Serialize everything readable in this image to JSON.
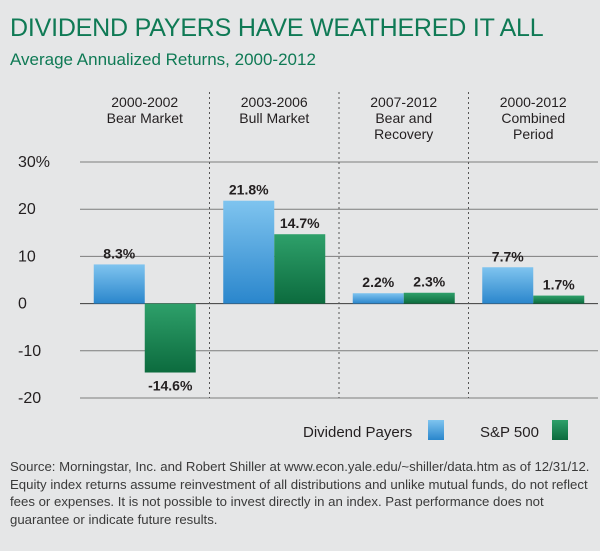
{
  "header": {
    "title": "DIVIDEND PAYERS HAVE WEATHERED IT ALL",
    "subtitle": "Average Annualized Returns, 2000-2012"
  },
  "colors": {
    "accent": "#0f7a55",
    "dividend_payers": "#2a86cc",
    "sp500": "#0c6b3e"
  },
  "chart_data": {
    "type": "bar",
    "categories": [
      [
        "2000-2002",
        "Bear Market"
      ],
      [
        "2003-2006",
        "Bull Market"
      ],
      [
        "2007-2012",
        "Bear and",
        "Recovery"
      ],
      [
        "2000-2012",
        "Combined",
        "Period"
      ]
    ],
    "series": [
      {
        "name": "Dividend Payers",
        "values": [
          8.3,
          21.8,
          2.2,
          7.7
        ],
        "labels": [
          "8.3%",
          "21.8%",
          "2.2%",
          "7.7%"
        ]
      },
      {
        "name": "S&P 500",
        "values": [
          -14.6,
          14.7,
          2.3,
          1.7
        ],
        "labels": [
          "-14.6%",
          "14.7%",
          "2.3%",
          "1.7%"
        ]
      }
    ],
    "yticks": [
      "30%",
      "20",
      "10",
      "0",
      "-10",
      "-20"
    ],
    "ytick_values": [
      30,
      20,
      10,
      0,
      -10,
      -20
    ],
    "ylim": [
      -20,
      30
    ],
    "grid": true,
    "legend_position": "bottom-right"
  },
  "footer": {
    "source": "Source: Morningstar, Inc. and Robert Shiller at www.econ.yale.edu/~shiller/data.htm as of 12/31/12. Equity index returns assume reinvestment of all distributions and unlike mutual funds, do not reflect fees or expenses. It is not possible to invest directly in an index. Past performance does not guarantee or indicate future results."
  }
}
